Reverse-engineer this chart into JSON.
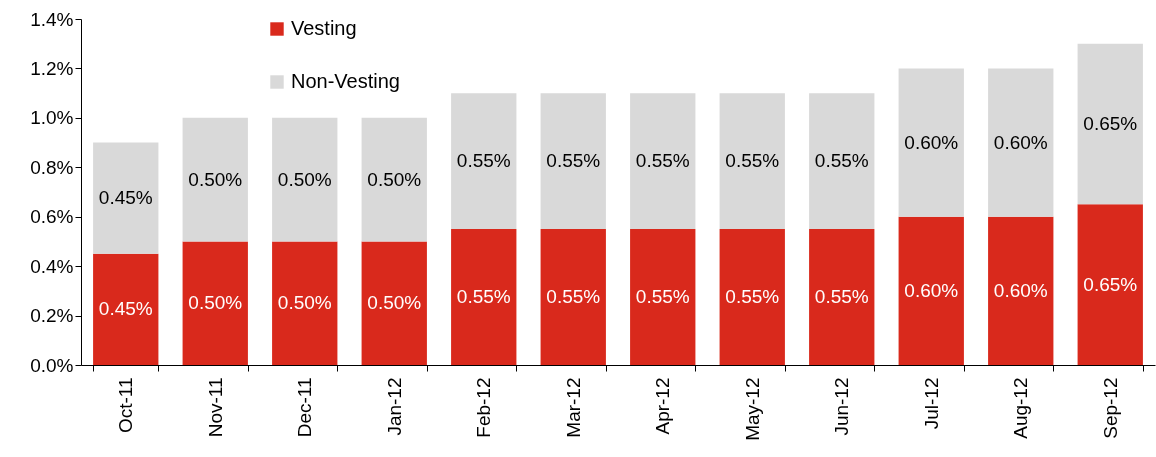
{
  "chart_data": {
    "type": "bar",
    "stacked": true,
    "categories": [
      "Oct-11",
      "Nov-11",
      "Dec-11",
      "Jan-12",
      "Feb-12",
      "Mar-12",
      "Apr-12",
      "May-12",
      "Jun-12",
      "Jul-12",
      "Aug-12",
      "Sep-12"
    ],
    "series": [
      {
        "name": "Vesting",
        "color": "#d9291c",
        "values": [
          0.45,
          0.5,
          0.5,
          0.5,
          0.55,
          0.55,
          0.55,
          0.55,
          0.55,
          0.6,
          0.6,
          0.65
        ],
        "value_labels": [
          "0.45%",
          "0.50%",
          "0.50%",
          "0.50%",
          "0.55%",
          "0.55%",
          "0.55%",
          "0.55%",
          "0.55%",
          "0.60%",
          "0.60%",
          "0.65%"
        ]
      },
      {
        "name": "Non-Vesting",
        "color": "#d9d9d9",
        "values": [
          0.45,
          0.5,
          0.5,
          0.5,
          0.55,
          0.55,
          0.55,
          0.55,
          0.55,
          0.6,
          0.6,
          0.65
        ],
        "value_labels": [
          "0.45%",
          "0.50%",
          "0.50%",
          "0.50%",
          "0.55%",
          "0.55%",
          "0.55%",
          "0.55%",
          "0.55%",
          "0.60%",
          "0.60%",
          "0.65%"
        ]
      }
    ],
    "ylim": [
      0,
      1.4
    ],
    "yticks": [
      {
        "value": 0,
        "label": "0.0%"
      },
      {
        "value": 0.2,
        "label": "0.2%"
      },
      {
        "value": 0.4,
        "label": "0.4%"
      },
      {
        "value": 0.6,
        "label": "0.6%"
      },
      {
        "value": 0.8,
        "label": "0.8%"
      },
      {
        "value": 1.0,
        "label": "1.0%"
      },
      {
        "value": 1.2,
        "label": "1.2%"
      },
      {
        "value": 1.4,
        "label": "1.4%"
      }
    ],
    "grid": false,
    "legend": "top left"
  }
}
